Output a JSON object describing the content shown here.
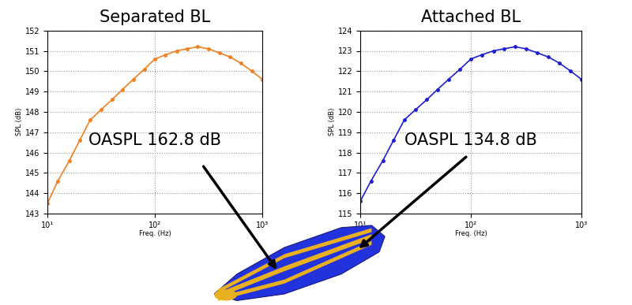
{
  "chart_data": [
    {
      "type": "line",
      "title": "Separated BL",
      "xlabel": "Freq. (Hz)",
      "ylabel": "SPL (dB)",
      "annotations": [
        "OASPL 162.8 dB"
      ],
      "log": "x",
      "grid": true,
      "marker": "dot",
      "color": "#f08020",
      "x": [
        10,
        12.5,
        16,
        20,
        25,
        31.5,
        40,
        50,
        63,
        80,
        100,
        125,
        160,
        200,
        250,
        315,
        400,
        500,
        630,
        800,
        1000
      ],
      "values": [
        143.5,
        144.6,
        145.6,
        146.6,
        147.6,
        148.1,
        148.6,
        149.1,
        149.6,
        150.1,
        150.6,
        150.8,
        151.0,
        151.1,
        151.2,
        151.1,
        150.9,
        150.7,
        150.4,
        150.0,
        149.6
      ],
      "xlim": [
        10,
        1000
      ],
      "xticks": [
        {
          "value": 10,
          "label": "10¹"
        },
        {
          "value": 100,
          "label": "10²"
        },
        {
          "value": 1000,
          "label": "10³"
        }
      ],
      "ylim": [
        143,
        152
      ],
      "yticks": [
        143,
        144,
        145,
        146,
        147,
        148,
        149,
        150,
        151,
        152
      ]
    },
    {
      "type": "line",
      "title": "Attached BL",
      "xlabel": "Freq. (Hz)",
      "ylabel": "SPL (dB)",
      "annotations": [
        "OASPL 134.8 dB"
      ],
      "log": "x",
      "grid": true,
      "marker": "dot",
      "color": "#2020d0",
      "x": [
        10,
        12.5,
        16,
        20,
        25,
        31.5,
        40,
        50,
        63,
        80,
        100,
        125,
        160,
        200,
        250,
        315,
        400,
        500,
        630,
        800,
        1000
      ],
      "values": [
        115.6,
        116.6,
        117.6,
        118.6,
        119.6,
        120.1,
        120.6,
        121.1,
        121.6,
        122.1,
        122.6,
        122.8,
        123.0,
        123.1,
        123.2,
        123.1,
        122.9,
        122.7,
        122.4,
        122.0,
        121.6
      ],
      "xlim": [
        10,
        1000
      ],
      "xticks": [
        {
          "value": 10,
          "label": "10¹"
        },
        {
          "value": 100,
          "label": "10²"
        },
        {
          "value": 1000,
          "label": "10³"
        }
      ],
      "ylim": [
        115,
        124
      ],
      "yticks": [
        115,
        116,
        117,
        118,
        119,
        120,
        121,
        122,
        123,
        124
      ]
    }
  ]
}
